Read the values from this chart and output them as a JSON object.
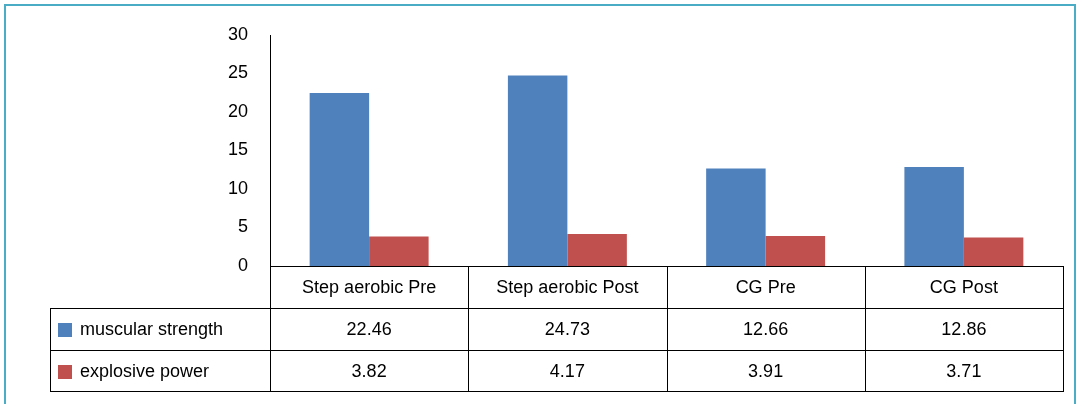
{
  "chart_data": {
    "type": "bar",
    "categories": [
      "Step aerobic Pre",
      "Step aerobic Post",
      "CG Pre",
      "CG Post"
    ],
    "series": [
      {
        "name": "muscular strength",
        "color": "#4f81bd",
        "values": [
          22.46,
          24.73,
          12.66,
          12.86
        ]
      },
      {
        "name": "explosive power",
        "color": "#c0504d",
        "values": [
          3.82,
          4.17,
          3.91,
          3.71
        ]
      }
    ],
    "ylim": [
      0,
      30
    ],
    "yticks": [
      0,
      5,
      10,
      15,
      20,
      25,
      30
    ],
    "grid": false,
    "legend": "bottom left",
    "data_labels": true
  }
}
